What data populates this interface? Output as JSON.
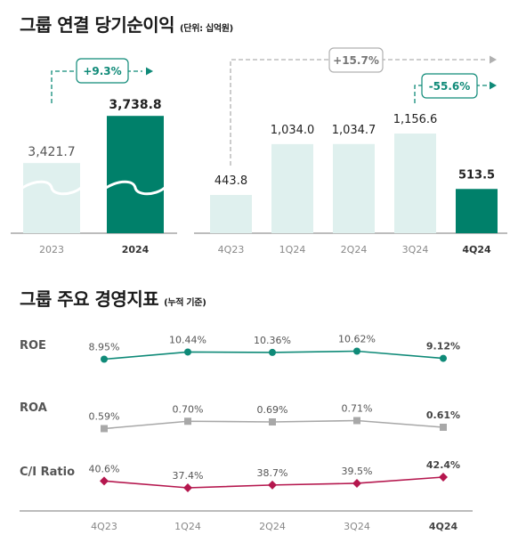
{
  "section1": {
    "title": "그룹 연결 당기순이익",
    "unit": "(단위: 십억원)"
  },
  "section2": {
    "title": "그룹 주요 경영지표",
    "unit": "(누적 기준)"
  },
  "colors": {
    "light_bar": "#dff0ee",
    "dark_bar": "#00806a",
    "teal": "#0f8a78",
    "grey_line": "#a8a8a8",
    "crimson": "#b5174e"
  },
  "chart_data": [
    {
      "type": "bar",
      "name": "annual",
      "categories": [
        "2023",
        "2024"
      ],
      "values": [
        3421.7,
        3738.8
      ],
      "value_labels": [
        "3,421.7",
        "3,738.8"
      ],
      "highlight": [
        false,
        true
      ],
      "axis_broken": true,
      "growth_label": "+9.3%"
    },
    {
      "type": "bar",
      "name": "quarterly",
      "categories": [
        "4Q23",
        "1Q24",
        "2Q24",
        "3Q24",
        "4Q24"
      ],
      "values": [
        443.8,
        1034.0,
        1034.7,
        1156.6,
        513.5
      ],
      "value_labels": [
        "443.8",
        "1,034.0",
        "1,034.7",
        "1,156.6",
        "513.5"
      ],
      "highlight": [
        false,
        false,
        false,
        false,
        true
      ],
      "growth_yoy_label": "+15.7%",
      "growth_qoq_label": "-55.6%"
    },
    {
      "type": "line",
      "categories": [
        "4Q23",
        "1Q24",
        "2Q24",
        "3Q24",
        "4Q24"
      ],
      "grid": false,
      "series": [
        {
          "name": "ROE",
          "values": [
            8.95,
            10.44,
            10.36,
            10.62,
            9.12
          ],
          "labels": [
            "8.95%",
            "10.44%",
            "10.36%",
            "10.62%",
            "9.12%"
          ],
          "marker": "circle",
          "color": "#0f8a78"
        },
        {
          "name": "ROA",
          "values": [
            0.59,
            0.7,
            0.69,
            0.71,
            0.61
          ],
          "labels": [
            "0.59%",
            "0.70%",
            "0.69%",
            "0.71%",
            "0.61%"
          ],
          "marker": "square",
          "color": "#a8a8a8"
        },
        {
          "name": "C/I Ratio",
          "values": [
            40.6,
            37.4,
            38.7,
            39.5,
            42.4
          ],
          "labels": [
            "40.6%",
            "37.4%",
            "38.7%",
            "39.5%",
            "42.4%"
          ],
          "marker": "diamond",
          "color": "#b5174e"
        }
      ]
    }
  ]
}
